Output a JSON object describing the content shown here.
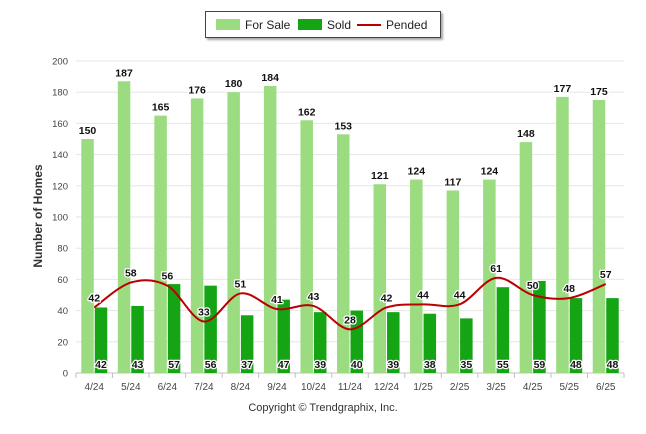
{
  "chart_data": {
    "type": "bar",
    "ylabel": "Number of Homes",
    "ylim": [
      0,
      200
    ],
    "yticks": [
      0,
      20,
      40,
      60,
      80,
      100,
      120,
      140,
      160,
      180,
      200
    ],
    "categories": [
      "4/24",
      "5/24",
      "6/24",
      "7/24",
      "8/24",
      "9/24",
      "10/24",
      "11/24",
      "12/24",
      "1/25",
      "2/25",
      "3/25",
      "4/25",
      "5/25",
      "6/25"
    ],
    "series": [
      {
        "name": "For Sale",
        "kind": "bar",
        "color": "#9bdc80",
        "values": [
          150,
          187,
          165,
          176,
          180,
          184,
          162,
          153,
          121,
          124,
          117,
          124,
          148,
          177,
          175
        ]
      },
      {
        "name": "Sold",
        "kind": "bar",
        "color": "#14a414",
        "values": [
          42,
          43,
          57,
          56,
          37,
          47,
          39,
          40,
          39,
          38,
          35,
          55,
          59,
          48,
          48
        ]
      },
      {
        "name": "Pended",
        "kind": "line",
        "color": "#bb0000",
        "values": [
          42,
          58,
          56,
          33,
          51,
          41,
          43,
          28,
          42,
          44,
          44,
          61,
          50,
          48,
          57
        ]
      }
    ],
    "legend_position": "top-center",
    "grid": true
  },
  "footer": {
    "copyright": "Copyright © Trendgraphix, Inc."
  }
}
